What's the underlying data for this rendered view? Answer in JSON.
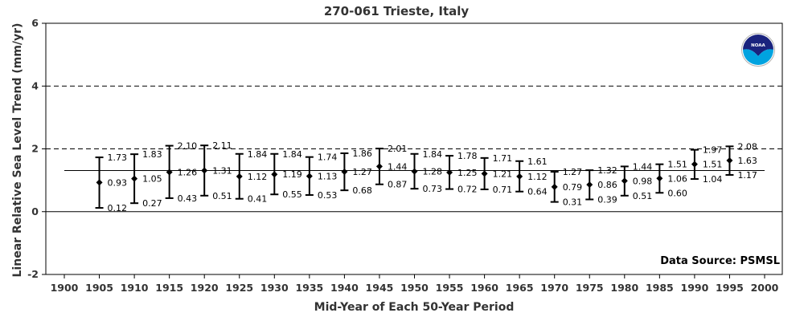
{
  "chart_data": {
    "type": "scatter",
    "title": "270-061 Trieste, Italy",
    "xlabel": "Mid-Year of Each 50-Year Period",
    "ylabel": "Linear Relative Sea Level Trend (mm/yr)",
    "xlim": [
      1897,
      2002
    ],
    "ylim": [
      -2,
      6
    ],
    "x_ticks": [
      1900,
      1905,
      1910,
      1915,
      1920,
      1925,
      1930,
      1935,
      1940,
      1945,
      1950,
      1955,
      1960,
      1965,
      1970,
      1975,
      1980,
      1985,
      1990,
      1995,
      2000
    ],
    "y_ticks": [
      -2,
      0,
      2,
      4,
      6
    ],
    "dashed_reference_lines": [
      2,
      4
    ],
    "zero_line": 0,
    "overall_trend_line": 1.31,
    "grid": false,
    "legend": "none",
    "annotation": "Data Source: PSMSL",
    "logo": "NOAA",
    "series": [
      {
        "x": [
          1905,
          1910,
          1915,
          1920,
          1925,
          1930,
          1935,
          1940,
          1945,
          1950,
          1955,
          1960,
          1965,
          1970,
          1975,
          1980,
          1985,
          1990,
          1995
        ],
        "values": [
          0.93,
          1.05,
          1.26,
          1.31,
          1.12,
          1.19,
          1.13,
          1.27,
          1.44,
          1.28,
          1.25,
          1.21,
          1.12,
          0.79,
          0.86,
          0.98,
          1.06,
          1.51,
          1.63
        ],
        "upper": [
          1.73,
          1.83,
          2.1,
          2.11,
          1.84,
          1.84,
          1.74,
          1.86,
          2.01,
          1.84,
          1.78,
          1.71,
          1.61,
          1.27,
          1.32,
          1.44,
          1.51,
          1.97,
          2.08
        ],
        "lower": [
          0.12,
          0.27,
          0.43,
          0.51,
          0.41,
          0.55,
          0.53,
          0.68,
          0.87,
          0.73,
          0.72,
          0.71,
          0.64,
          0.31,
          0.39,
          0.51,
          0.6,
          1.04,
          1.17
        ],
        "value_labels": [
          "0.93",
          "1.05",
          "1.26",
          "1.31",
          "1.12",
          "1.19",
          "1.13",
          "1.27",
          "1.44",
          "1.28",
          "1.25",
          "1.21",
          "1.12",
          "0.79",
          "0.86",
          "0.98",
          "1.06",
          "1.51",
          "1.63"
        ],
        "upper_labels": [
          "1.73",
          "1.83",
          "2.10",
          "2.11",
          "1.84",
          "1.84",
          "1.74",
          "1.86",
          "2.01",
          "1.84",
          "1.78",
          "1.71",
          "1.61",
          "1.27",
          "1.32",
          "1.44",
          "1.51",
          "1.97",
          "2.08"
        ],
        "lower_labels": [
          "0.12",
          "0.27",
          "0.43",
          "0.51",
          "0.41",
          "0.55",
          "0.53",
          "0.68",
          "0.87",
          "0.73",
          "0.72",
          "0.71",
          "0.64",
          "0.31",
          "0.39",
          "0.51",
          "0.60",
          "1.04",
          "1.17"
        ]
      }
    ]
  },
  "logo": {
    "text": "NOAA",
    "colors": {
      "top": "#1a237e",
      "bottom": "#00a3e0",
      "ring": "#ffffff"
    }
  }
}
